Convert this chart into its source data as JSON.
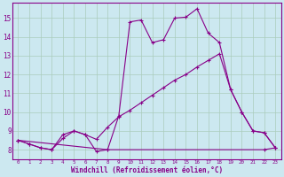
{
  "xlabel": "Windchill (Refroidissement éolien,°C)",
  "bg_color": "#cce8f0",
  "line_color": "#880088",
  "grid_color": "#aaccbb",
  "xlim": [
    -0.5,
    23.5
  ],
  "ylim": [
    7.5,
    15.8
  ],
  "yticks": [
    8,
    9,
    10,
    11,
    12,
    13,
    14,
    15
  ],
  "xticks": [
    0,
    1,
    2,
    3,
    4,
    5,
    6,
    7,
    8,
    9,
    10,
    11,
    12,
    13,
    14,
    15,
    16,
    17,
    18,
    19,
    20,
    21,
    22,
    23
  ],
  "line1_x": [
    0,
    1,
    2,
    3,
    4,
    5,
    6,
    7,
    8,
    9,
    10,
    11,
    12,
    13,
    14,
    15,
    16,
    17,
    18,
    19,
    20,
    21,
    22,
    23
  ],
  "line1_y": [
    8.5,
    8.3,
    8.1,
    8.0,
    8.8,
    9.0,
    8.8,
    7.9,
    8.0,
    9.8,
    14.8,
    14.9,
    13.7,
    13.85,
    15.0,
    15.05,
    15.5,
    14.2,
    13.7,
    11.2,
    10.0,
    9.0,
    8.9,
    8.1
  ],
  "line2_x": [
    0,
    1,
    2,
    3,
    4,
    5,
    6,
    7,
    8,
    9,
    10,
    11,
    12,
    13,
    14,
    15,
    16,
    17,
    18,
    19,
    20,
    21,
    22,
    23
  ],
  "line2_y": [
    8.5,
    8.3,
    8.1,
    8.0,
    8.6,
    9.0,
    8.8,
    8.55,
    9.2,
    9.75,
    10.1,
    10.5,
    10.9,
    11.3,
    11.7,
    12.0,
    12.4,
    12.75,
    13.1,
    11.2,
    10.0,
    9.0,
    8.9,
    8.1
  ],
  "line3_x": [
    0,
    8,
    22,
    23
  ],
  "line3_y": [
    8.5,
    8.0,
    8.0,
    8.1
  ]
}
